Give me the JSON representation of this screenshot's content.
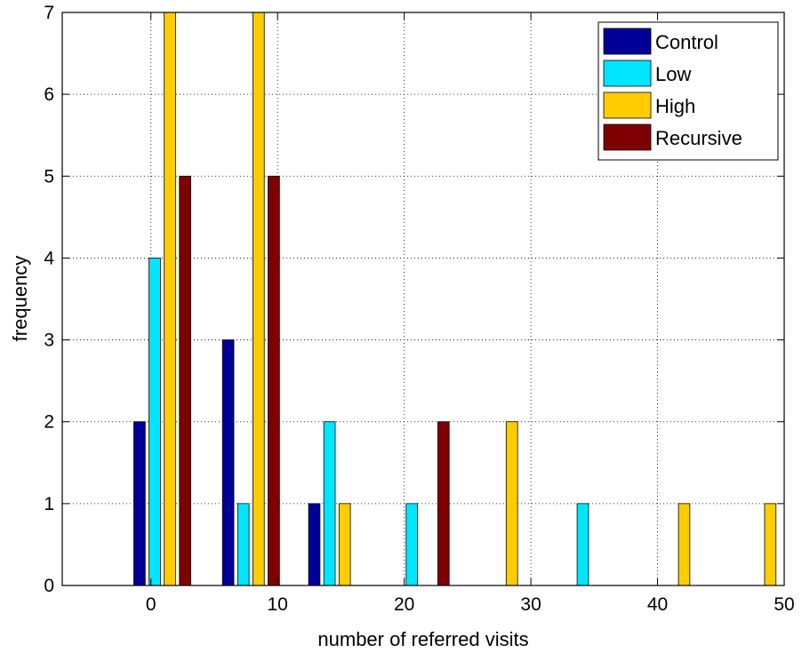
{
  "chart_data": {
    "type": "bar",
    "xlabel": "number of referred visits",
    "ylabel": "frequency",
    "xlim": [
      -7,
      50
    ],
    "ylim": [
      0,
      7
    ],
    "xticks": [
      0,
      10,
      20,
      30,
      40,
      50
    ],
    "yticks": [
      0,
      1,
      2,
      3,
      4,
      5,
      6,
      7
    ],
    "grid": true,
    "grid_style": "dotted",
    "legend_position": "top-right",
    "bar_width": 0.9,
    "series": [
      {
        "name": "Control",
        "color": "#000099",
        "x": [
          -0.9,
          6.1,
          12.9
        ],
        "values": [
          2,
          3,
          1
        ]
      },
      {
        "name": "Low",
        "color": "#00E5FF",
        "x": [
          0.3,
          7.3,
          14.1,
          20.6,
          34.1
        ],
        "values": [
          4,
          1,
          2,
          1,
          1
        ]
      },
      {
        "name": "High",
        "color": "#FFCC00",
        "x": [
          1.5,
          8.5,
          15.3,
          28.5,
          42.1,
          48.9
        ],
        "values": [
          7,
          7,
          1,
          2,
          1,
          1
        ]
      },
      {
        "name": "Recursive",
        "color": "#7F0000",
        "x": [
          2.7,
          9.7,
          23.1
        ],
        "values": [
          5,
          5,
          2
        ]
      }
    ]
  }
}
